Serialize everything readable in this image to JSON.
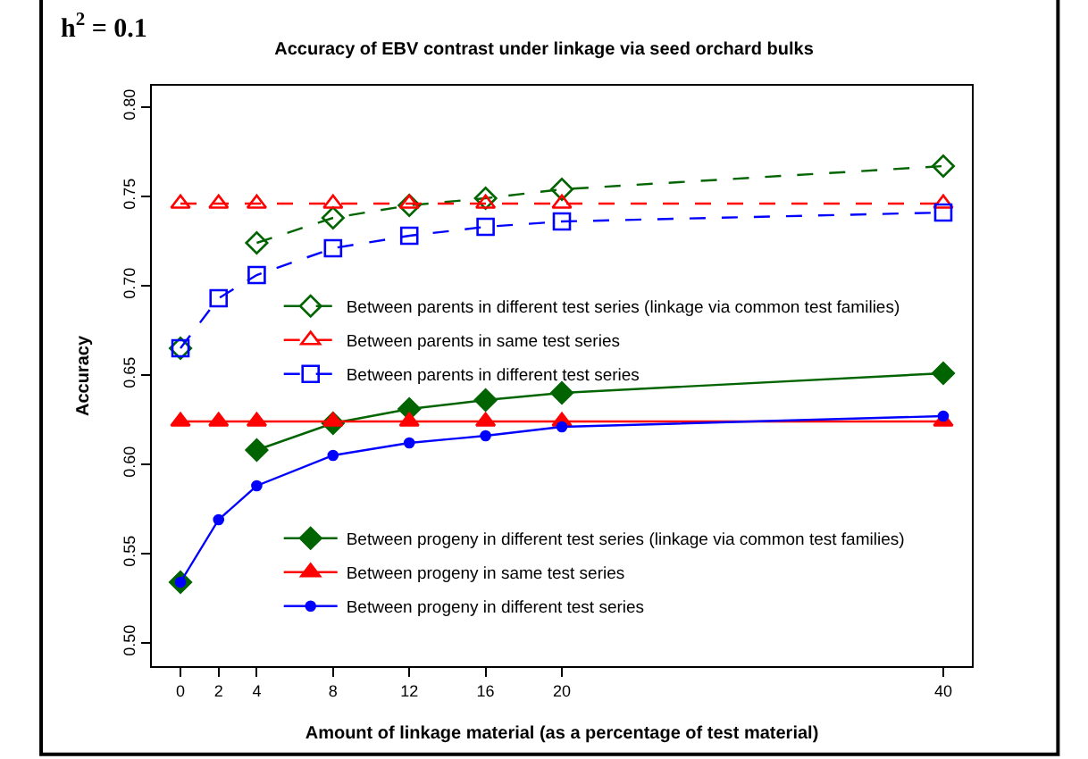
{
  "chart_data": {
    "type": "line",
    "title": "Accuracy of EBV contrast under linkage via seed orchard bulks",
    "xlabel": "Amount of linkage material (as a percentage of test material)",
    "ylabel": "Accuracy",
    "annotations": [
      "h$^{2}$ = 0.1"
    ],
    "x": [
      0,
      2,
      4,
      8,
      12,
      16,
      20,
      40
    ],
    "xlim": [
      -1.5,
      41.5
    ],
    "xticks": [
      0,
      2,
      4,
      8,
      12,
      16,
      20,
      40
    ],
    "ylim": [
      0.487,
      0.812
    ],
    "yticks": [
      {
        "value": 0.5,
        "label": "0.50"
      },
      {
        "value": 0.55,
        "label": "0.55"
      },
      {
        "value": 0.6,
        "label": "0.60"
      },
      {
        "value": 0.65,
        "label": "0.65"
      },
      {
        "value": 0.7,
        "label": "0.70"
      },
      {
        "value": 0.75,
        "label": "0.75"
      },
      {
        "value": 0.8,
        "label": "0.80"
      }
    ],
    "legend": "left",
    "series": [
      {
        "name": "Between parents in different test series (linkage via common test families)",
        "color": "#006400",
        "marker": "diamond",
        "line_style": "dashed",
        "values": [
          0.665,
          null,
          0.724,
          0.738,
          0.745,
          0.749,
          0.754,
          0.767
        ]
      },
      {
        "name": "Between parents in same test series",
        "color": "#ff0000",
        "marker": "triangle",
        "line_style": "dashed",
        "values": [
          0.746,
          0.746,
          0.746,
          0.746,
          0.746,
          0.746,
          0.746,
          0.746
        ]
      },
      {
        "name": "Between parents in different test series",
        "color": "#0000ff",
        "marker": "square",
        "line_style": "dashed",
        "values": [
          0.665,
          0.693,
          0.706,
          0.721,
          0.728,
          0.733,
          0.736,
          0.741
        ]
      },
      {
        "name": "Between progeny in different test series (linkage via common test families)",
        "color": "#006400",
        "marker": "diamond",
        "line_style": "solid",
        "values": [
          0.534,
          null,
          0.608,
          0.623,
          0.631,
          0.636,
          0.64,
          0.651
        ]
      },
      {
        "name": "Between progeny in same test series",
        "color": "#ff0000",
        "marker": "triangle",
        "line_style": "solid",
        "values": [
          0.624,
          0.624,
          0.624,
          0.624,
          0.624,
          0.624,
          0.624,
          0.624
        ]
      },
      {
        "name": "Between progeny in different test series",
        "color": "#0000ff",
        "marker": "circle",
        "line_style": "solid",
        "values": [
          0.534,
          0.569,
          0.588,
          0.605,
          0.612,
          0.616,
          0.621,
          0.627
        ]
      }
    ]
  }
}
